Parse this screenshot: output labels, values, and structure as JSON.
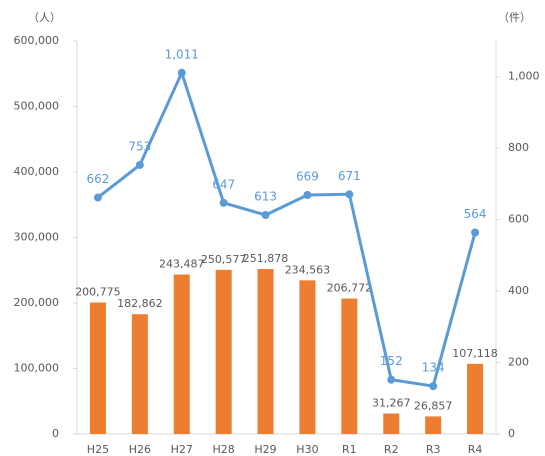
{
  "chart_data": {
    "type": "bar",
    "y_unit": "（人）",
    "y2_unit": "（件）",
    "categories": [
      "H25",
      "H26",
      "H27",
      "H28",
      "H29",
      "H30",
      "R1",
      "R2",
      "R3",
      "R4"
    ],
    "series": [
      {
        "type": "bar",
        "color": "#ed7d31",
        "axis": "y",
        "values": [
          200775,
          182862,
          243487,
          250577,
          251878,
          234563,
          206772,
          31267,
          26857,
          107118
        ],
        "value_labels": [
          "200,775",
          "182,862",
          "243,487",
          "250,577",
          "251,878",
          "234,563",
          "206,772",
          "31,267",
          "26,857",
          "107,118"
        ]
      },
      {
        "type": "line",
        "color": "#5b9bd5",
        "axis": "y2",
        "values": [
          662,
          753,
          1011,
          647,
          613,
          669,
          671,
          152,
          134,
          564
        ],
        "value_labels": [
          "662",
          "753",
          "1,011",
          "647",
          "613",
          "669",
          "671",
          "152",
          "134",
          "564"
        ]
      }
    ],
    "ylim": [
      0,
      600000
    ],
    "yticks": [
      0,
      {
        "value": 100000,
        "label": "100,000"
      },
      {
        "value": 200000,
        "label": "200,000"
      },
      {
        "value": 300000,
        "label": "300,000"
      },
      {
        "value": 400000,
        "label": "400,000"
      },
      {
        "value": 500000,
        "label": "500,000"
      },
      {
        "value": 600000,
        "label": "600,000"
      }
    ],
    "y2lim": [
      0,
      1100
    ],
    "y2ticks": [
      0,
      200,
      400,
      600,
      800,
      {
        "value": 1000,
        "label": "1,000"
      }
    ]
  }
}
